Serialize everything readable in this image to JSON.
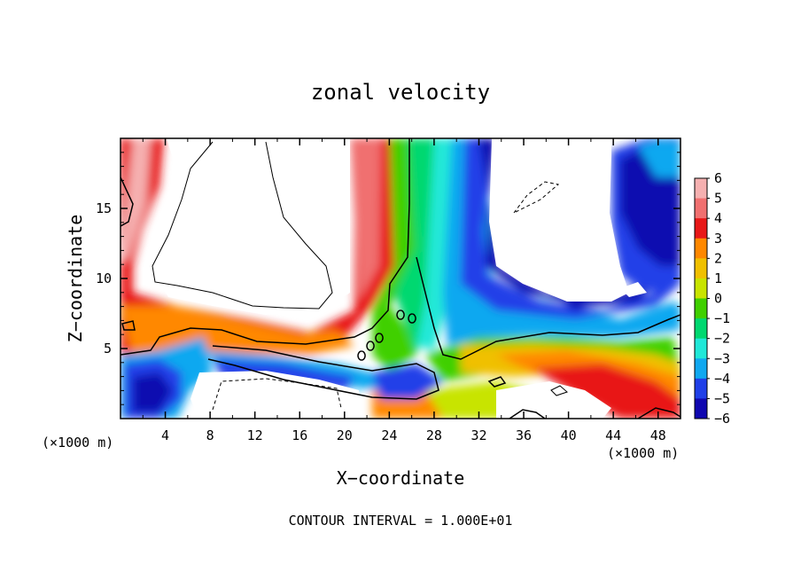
{
  "chart_data": {
    "type": "heatmap",
    "title": "zonal velocity",
    "xlabel": "X−coordinate",
    "ylabel": "Z−coordinate",
    "x_unit_label": "(×1000 m)",
    "x_unit_label_right": "(×1000 m)",
    "footer": "CONTOUR INTERVAL = 1.000E+01",
    "xlim": [
      0,
      50
    ],
    "ylim": [
      0,
      20
    ],
    "x_ticks": [
      4,
      8,
      12,
      16,
      20,
      24,
      28,
      32,
      36,
      40,
      44,
      48
    ],
    "x_tick_labels": [
      "4",
      "8",
      "12",
      "16",
      "20",
      "24",
      "28",
      "32",
      "36",
      "40",
      "44",
      "48"
    ],
    "y_ticks": [
      5,
      10,
      15
    ],
    "y_tick_labels": [
      "5",
      "10",
      "15"
    ],
    "colorbar": {
      "levels": [
        6,
        5,
        4,
        3,
        2,
        1,
        0,
        -1,
        -2,
        -3,
        -4,
        -5,
        -6
      ],
      "labels": [
        "6",
        "5",
        "4",
        "3",
        "2",
        "1",
        "0",
        "−1",
        "−2",
        "−3",
        "−4",
        "−5",
        "−6"
      ],
      "colors": [
        "#f5b0b0",
        "#f07070",
        "#e81818",
        "#ff8800",
        "#f0c000",
        "#c8e400",
        "#40d000",
        "#00d870",
        "#20e8d8",
        "#10a8f0",
        "#2040e8",
        "#1008b0",
        "#6a00a8"
      ]
    },
    "grid": false,
    "legend_placement": "right colorbar"
  }
}
